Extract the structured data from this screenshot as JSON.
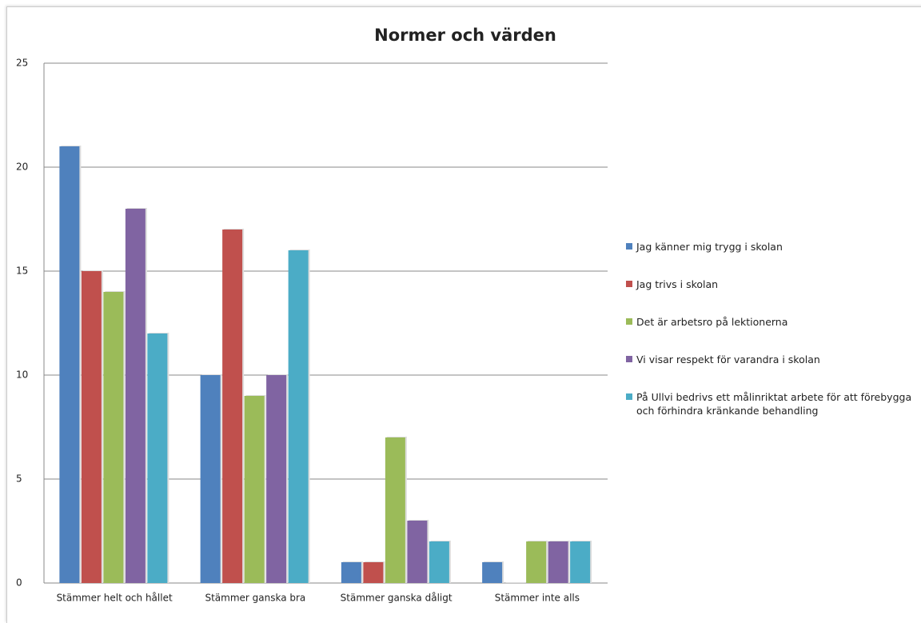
{
  "chart_data": {
    "type": "bar",
    "title": "Normer och värden",
    "categories": [
      "Stämmer helt och hållet",
      "Stämmer ganska bra",
      "Stämmer ganska dåligt",
      "Stämmer inte alls"
    ],
    "series": [
      {
        "name": "Jag känner mig trygg i skolan",
        "color": "#4f81bd",
        "values": [
          21,
          10,
          1,
          1
        ]
      },
      {
        "name": "Jag trivs i skolan",
        "color": "#c0504d",
        "values": [
          15,
          17,
          1,
          0
        ]
      },
      {
        "name": "Det är arbetsro på lektionerna",
        "color": "#9bbb59",
        "values": [
          14,
          9,
          7,
          2
        ]
      },
      {
        "name": "Vi visar respekt för varandra i skolan",
        "color": "#8064a2",
        "values": [
          18,
          10,
          3,
          2
        ]
      },
      {
        "name": "På Ullvi bedrivs ett målinriktat arbete för att förebygga och förhindra kränkande behandling",
        "color": "#4bacc6",
        "values": [
          12,
          16,
          2,
          2
        ]
      }
    ],
    "ylim": [
      0,
      25
    ],
    "yticks": [
      0,
      5,
      10,
      15,
      20,
      25
    ],
    "grid": true,
    "legend": "right"
  }
}
